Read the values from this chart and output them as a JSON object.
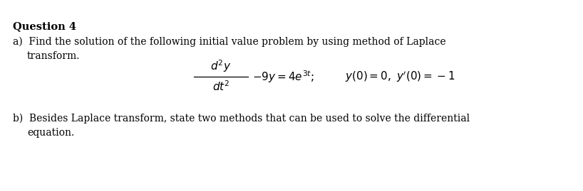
{
  "background_color": "#ffffff",
  "text_color": "#000000",
  "title": "Question 4",
  "line_a1": "a)  Find the solution of the following initial value problem by using method of Laplace",
  "line_a2": "     transform.",
  "line_eq_num": "$d^2y$",
  "line_eq_den": "$dt^2$",
  "line_eq_rest": "$-9y=4e^{3t};$",
  "line_eq_cond": "$y(0)=0,\\ y'(0)=-1$",
  "line_b1": "b)  Besides Laplace transform, state two methods that can be used to solve the differential",
  "line_b2": "     equation.",
  "font_size": 10.0,
  "title_font_size": 10.5,
  "fig_width": 8.18,
  "fig_height": 2.69,
  "dpi": 100
}
